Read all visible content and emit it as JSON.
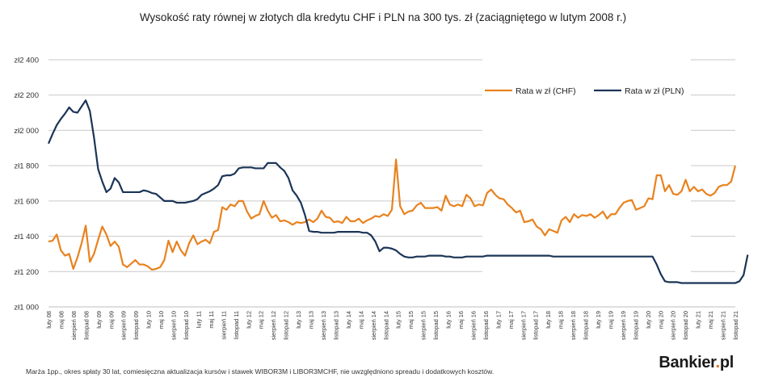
{
  "chart_data": {
    "type": "line",
    "title": "Wysokość raty równej w złotych dla kredytu CHF i PLN na 300 tys. zł (zaciągniętego w lutym 2008 r.)",
    "xlabel": "",
    "ylabel": "",
    "ylim": [
      1000,
      2400
    ],
    "y_ticks": [
      "zł1 000",
      "zł1 200",
      "zł1 400",
      "zł1 600",
      "zł1 800",
      "zł2 000",
      "zł2 200",
      "zł2 400"
    ],
    "x_ticks": [
      "luty 08",
      "maj 08",
      "sierpień 08",
      "listopad 08",
      "luty 09",
      "maj 09",
      "sierpień 09",
      "listopad 09",
      "luty 10",
      "maj 10",
      "sierpień 10",
      "listopad 10",
      "luty 11",
      "maj 11",
      "sierpień 11",
      "listopad 11",
      "luty 12",
      "maj 12",
      "sierpień 12",
      "listopad 12",
      "luty 13",
      "maj 13",
      "sierpień 13",
      "listopad 13",
      "luty 14",
      "maj 14",
      "sierpień 14",
      "listopad 14",
      "luty 15",
      "maj 15",
      "sierpień 15",
      "listopad 15",
      "luty 16",
      "maj 16",
      "sierpień 16",
      "listopad 16",
      "luty 17",
      "maj 17",
      "sierpień 17",
      "listopad 17",
      "luty 18",
      "maj 18",
      "sierpień 18",
      "listopad 18",
      "luty 19",
      "maj 19",
      "sierpień 19",
      "listopad 19",
      "luty 20",
      "maj 20",
      "sierpień 20",
      "listopad 20",
      "luty 21",
      "maj 21",
      "sierpień 21",
      "listopad 21"
    ],
    "grid": "horizontal",
    "legend_position": "top-right",
    "series": [
      {
        "name": "Rata w zł (CHF)",
        "color": "#E8821E",
        "values": [
          1370,
          1375,
          1410,
          1320,
          1290,
          1300,
          1215,
          1280,
          1360,
          1460,
          1255,
          1300,
          1380,
          1455,
          1410,
          1345,
          1370,
          1340,
          1240,
          1225,
          1245,
          1265,
          1240,
          1240,
          1230,
          1210,
          1215,
          1225,
          1265,
          1375,
          1310,
          1370,
          1320,
          1290,
          1360,
          1405,
          1355,
          1370,
          1380,
          1360,
          1425,
          1435,
          1565,
          1550,
          1580,
          1570,
          1600,
          1600,
          1540,
          1500,
          1515,
          1525,
          1600,
          1545,
          1505,
          1520,
          1485,
          1490,
          1480,
          1465,
          1480,
          1475,
          1480,
          1495,
          1480,
          1500,
          1545,
          1510,
          1505,
          1480,
          1485,
          1475,
          1510,
          1485,
          1485,
          1500,
          1475,
          1490,
          1500,
          1515,
          1510,
          1525,
          1515,
          1550,
          1835,
          1570,
          1525,
          1540,
          1545,
          1575,
          1590,
          1560,
          1560,
          1560,
          1565,
          1545,
          1630,
          1580,
          1570,
          1580,
          1570,
          1635,
          1615,
          1570,
          1580,
          1575,
          1645,
          1665,
          1635,
          1615,
          1610,
          1580,
          1560,
          1535,
          1545,
          1480,
          1485,
          1495,
          1455,
          1440,
          1405,
          1440,
          1430,
          1420,
          1490,
          1510,
          1480,
          1525,
          1505,
          1520,
          1515,
          1525,
          1505,
          1520,
          1540,
          1500,
          1525,
          1525,
          1560,
          1590,
          1600,
          1605,
          1550,
          1560,
          1570,
          1615,
          1610,
          1745,
          1745,
          1655,
          1690,
          1640,
          1635,
          1655,
          1720,
          1655,
          1680,
          1655,
          1665,
          1640,
          1630,
          1645,
          1680,
          1690,
          1690,
          1710,
          1800
        ]
      },
      {
        "name": "Rata w zł (PLN)",
        "color": "#1B3557",
        "values": [
          1925,
          1980,
          2030,
          2065,
          2095,
          2130,
          2105,
          2100,
          2135,
          2170,
          2110,
          1960,
          1780,
          1710,
          1650,
          1670,
          1730,
          1705,
          1650,
          1650,
          1650,
          1650,
          1650,
          1660,
          1655,
          1645,
          1640,
          1620,
          1600,
          1600,
          1600,
          1590,
          1590,
          1590,
          1595,
          1600,
          1610,
          1635,
          1645,
          1655,
          1670,
          1690,
          1740,
          1745,
          1745,
          1755,
          1785,
          1790,
          1790,
          1790,
          1785,
          1785,
          1785,
          1815,
          1815,
          1815,
          1790,
          1770,
          1730,
          1660,
          1630,
          1590,
          1520,
          1430,
          1425,
          1425,
          1420,
          1420,
          1420,
          1420,
          1425,
          1425,
          1425,
          1425,
          1425,
          1425,
          1420,
          1420,
          1405,
          1370,
          1315,
          1335,
          1335,
          1330,
          1320,
          1300,
          1285,
          1280,
          1280,
          1285,
          1285,
          1285,
          1290,
          1290,
          1290,
          1290,
          1285,
          1285,
          1280,
          1280,
          1280,
          1285,
          1285,
          1285,
          1285,
          1285,
          1290,
          1290,
          1290,
          1290,
          1290,
          1290,
          1290,
          1290,
          1290,
          1290,
          1290,
          1290,
          1290,
          1290,
          1290,
          1290,
          1285,
          1285,
          1285,
          1285,
          1285,
          1285,
          1285,
          1285,
          1285,
          1285,
          1285,
          1285,
          1285,
          1285,
          1285,
          1285,
          1285,
          1285,
          1285,
          1285,
          1285,
          1285,
          1285,
          1285,
          1285,
          1240,
          1185,
          1145,
          1140,
          1140,
          1140,
          1135,
          1135,
          1135,
          1135,
          1135,
          1135,
          1135,
          1135,
          1135,
          1135,
          1135,
          1135,
          1135,
          1135,
          1145,
          1180,
          1295
        ]
      }
    ],
    "footnote": "Marża 1pp., okres spłaty 30 lat, comiesięczna aktualizacja kursów i stawek WIBOR3M i LIBOR3MCHF, nie uwzględniono spreadu i dodatkowych kosztów.",
    "brand": {
      "name": "Bankier",
      "dot": ".",
      "tld": "pl"
    }
  }
}
